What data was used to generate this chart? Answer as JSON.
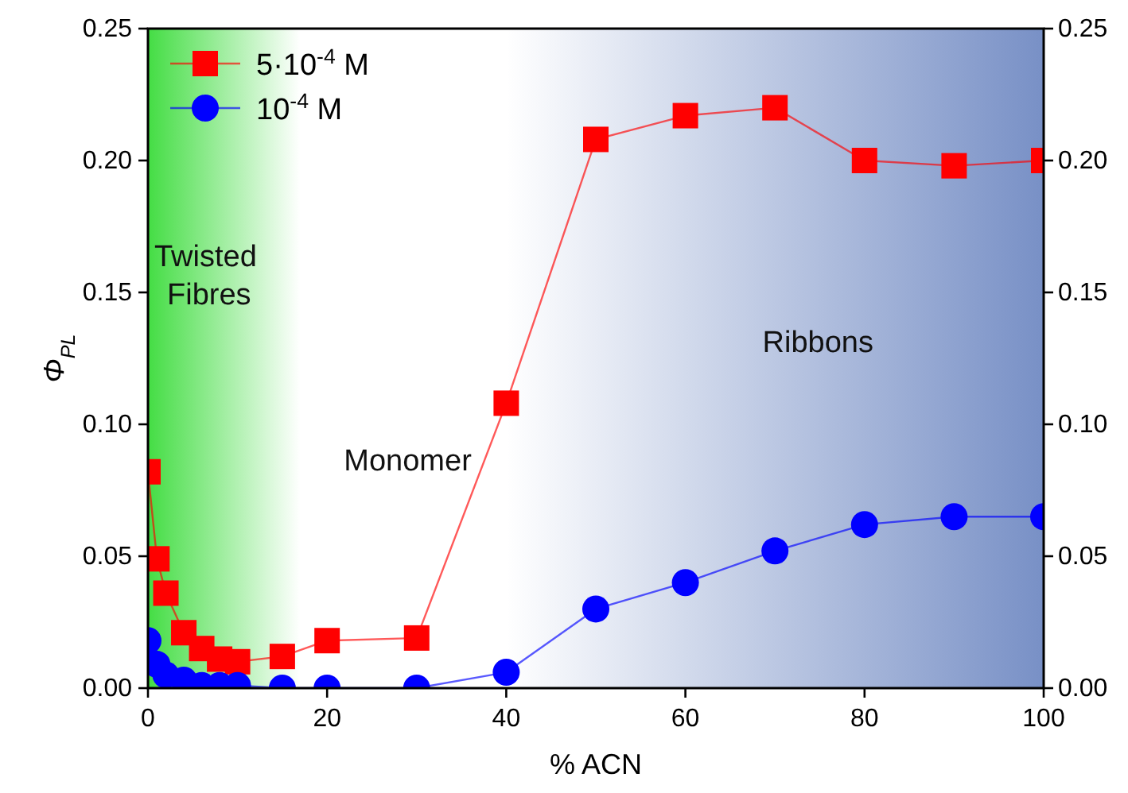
{
  "chart_data": {
    "type": "line",
    "xlabel": "% ACN",
    "ylabel": "Φ$_{PL}$",
    "x": [
      0,
      1,
      2,
      4,
      6,
      8,
      10,
      15,
      20,
      30,
      40,
      50,
      60,
      70,
      80,
      90,
      100
    ],
    "series": [
      {
        "name": "5·10$^{-4}$ M",
        "color": "#ff0000",
        "marker": "square",
        "values": [
          0.082,
          0.049,
          0.036,
          0.021,
          0.015,
          0.011,
          0.01,
          0.012,
          0.018,
          0.019,
          0.108,
          0.208,
          0.217,
          0.22,
          0.2,
          0.198,
          0.2
        ]
      },
      {
        "name": "10$^{-4}$ M",
        "color": "#0000ff",
        "marker": "circle",
        "values": [
          0.018,
          0.009,
          0.005,
          0.003,
          0.001,
          0.001,
          0.001,
          0,
          0,
          0,
          0.006,
          0.03,
          0.04,
          0.052,
          0.062,
          0.065,
          0.065
        ]
      }
    ],
    "xlim": [
      0,
      100
    ],
    "xticks": [
      0,
      20,
      40,
      60,
      80,
      100
    ],
    "ylim": [
      0,
      0.25
    ],
    "yticks": [
      {
        "value": 0,
        "label": "0.00"
      },
      {
        "value": 0.05,
        "label": "0.05"
      },
      {
        "value": 0.1,
        "label": "0.10"
      },
      {
        "value": 0.15,
        "label": "0.15"
      },
      {
        "value": 0.2,
        "label": "0.20"
      },
      {
        "value": 0.25,
        "label": "0.25"
      }
    ],
    "y2lim": [
      0,
      0.25
    ],
    "y2ticks": [
      {
        "value": 0,
        "label": "0.00"
      },
      {
        "value": 0.05,
        "label": "0.05"
      },
      {
        "value": 0.1,
        "label": "0.10"
      },
      {
        "value": 0.15,
        "label": "0.15"
      },
      {
        "value": 0.2,
        "label": "0.20"
      },
      {
        "value": 0.25,
        "label": "0.25"
      }
    ],
    "bands": [
      {
        "axis": "x",
        "from": 0,
        "to": 17,
        "label": "Twisted Fibres",
        "color": "#44dd44"
      },
      {
        "axis": "x",
        "from": 40,
        "to": 100,
        "label": "Ribbons",
        "color": "#7890c6"
      }
    ],
    "annotations": [
      "Monomer"
    ],
    "legend": "top left"
  }
}
